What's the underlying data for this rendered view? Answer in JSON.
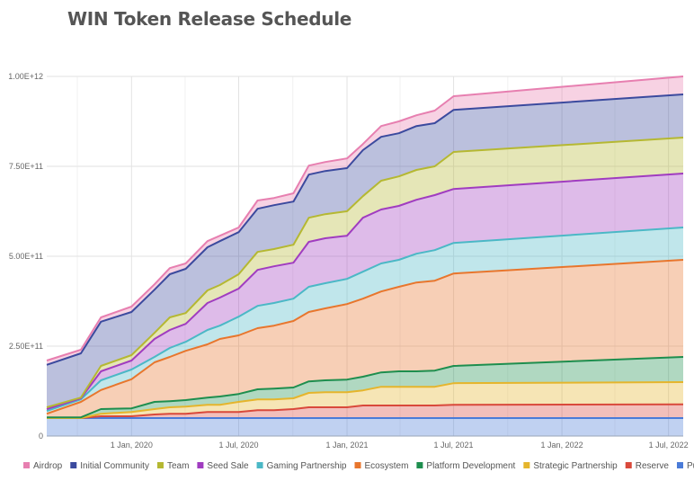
{
  "chart_data": {
    "type": "area",
    "stacked": true,
    "title": "WIN Token Release Schedule",
    "xlabel": "",
    "ylabel": "",
    "ylim": [
      0,
      1000000000000.0
    ],
    "y_ticks": [
      {
        "value": 0,
        "label": "0"
      },
      {
        "value": 250000000000.0,
        "label": "2.50E+11"
      },
      {
        "value": 500000000000.0,
        "label": "5.00E+11"
      },
      {
        "value": 750000000000.0,
        "label": "7.50E+11"
      },
      {
        "value": 1000000000000.0,
        "label": "1.00E+12"
      }
    ],
    "x_ticks": [
      {
        "date": "2020-01-01",
        "label": "1 Jan, 2020"
      },
      {
        "date": "2020-07-01",
        "label": "1 Jul, 2020"
      },
      {
        "date": "2021-01-01",
        "label": "1 Jan, 2021"
      },
      {
        "date": "2021-07-01",
        "label": "1 Jul, 2021"
      },
      {
        "date": "2022-01-01",
        "label": "1 Jan, 2022"
      },
      {
        "date": "2022-07-01",
        "label": "1 Jul, 2022"
      }
    ],
    "xlim": [
      "2019-08-10",
      "2022-07-26"
    ],
    "grid": true,
    "legend_position": "bottom",
    "x": [
      "2019-08-10",
      "2019-10-07",
      "2019-11-10",
      "2020-01-01",
      "2020-02-09",
      "2020-03-06",
      "2020-04-02",
      "2020-05-09",
      "2020-05-30",
      "2020-07-01",
      "2020-08-02",
      "2020-08-30",
      "2020-10-02",
      "2020-10-28",
      "2020-11-25",
      "2021-01-01",
      "2021-01-28",
      "2021-02-28",
      "2021-03-30",
      "2021-04-29",
      "2021-05-30",
      "2021-07-01",
      "2022-07-26"
    ],
    "series": [
      {
        "name": "Public Sale",
        "color": "#4a7bd8",
        "values": [
          50000000000.0,
          50000000000.0,
          50000000000.0,
          50000000000.0,
          50000000000.0,
          50000000000.0,
          50000000000.0,
          50000000000.0,
          50000000000.0,
          50000000000.0,
          50000000000.0,
          50000000000.0,
          50000000000.0,
          50000000000.0,
          50000000000.0,
          50000000000.0,
          50000000000.0,
          50000000000.0,
          50000000000.0,
          50000000000.0,
          50000000000.0,
          50000000000.0,
          50000000000.0
        ]
      },
      {
        "name": "Reserve",
        "color": "#d9493b",
        "values": [
          0,
          0,
          5000000000.0,
          5000000000.0,
          10000000000.0,
          12000000000.0,
          12000000000.0,
          17000000000.0,
          17000000000.0,
          17000000000.0,
          22000000000.0,
          22000000000.0,
          25000000000.0,
          30000000000.0,
          30000000000.0,
          30000000000.0,
          35000000000.0,
          35000000000.0,
          35000000000.0,
          35000000000.0,
          35000000000.0,
          37000000000.0,
          38000000000.0
        ]
      },
      {
        "name": "Strategic Partnership",
        "color": "#e5b52c",
        "values": [
          0,
          0,
          7000000000.0,
          12000000000.0,
          15000000000.0,
          18000000000.0,
          20000000000.0,
          20000000000.0,
          20000000000.0,
          28000000000.0,
          30000000000.0,
          30000000000.0,
          30000000000.0,
          40000000000.0,
          42000000000.0,
          42000000000.0,
          42000000000.0,
          52000000000.0,
          52000000000.0,
          52000000000.0,
          52000000000.0,
          60000000000.0,
          62000000000.0
        ]
      },
      {
        "name": "Platform Development",
        "color": "#1e8e4e",
        "values": [
          2000000000.0,
          2000000000.0,
          13000000000.0,
          10000000000.0,
          20000000000.0,
          17000000000.0,
          18000000000.0,
          20000000000.0,
          23000000000.0,
          22000000000.0,
          28000000000.0,
          30000000000.0,
          30000000000.0,
          32000000000.0,
          33000000000.0,
          35000000000.0,
          38000000000.0,
          40000000000.0,
          43000000000.0,
          43000000000.0,
          45000000000.0,
          48000000000.0,
          70000000000.0
        ]
      },
      {
        "name": "Ecosystem",
        "color": "#e8762d",
        "values": [
          10000000000.0,
          43000000000.0,
          53000000000.0,
          81000000000.0,
          110000000000.0,
          123000000000.0,
          137000000000.0,
          148000000000.0,
          160000000000.0,
          163000000000.0,
          170000000000.0,
          175000000000.0,
          185000000000.0,
          193000000000.0,
          200000000000.0,
          210000000000.0,
          217000000000.0,
          225000000000.0,
          235000000000.0,
          247000000000.0,
          250000000000.0,
          257000000000.0,
          270000000000.0
        ]
      },
      {
        "name": "Gaming Partnership",
        "color": "#4bb8c6",
        "values": [
          8000000000.0,
          7000000000.0,
          27000000000.0,
          27000000000.0,
          15000000000.0,
          25000000000.0,
          25000000000.0,
          40000000000.0,
          37000000000.0,
          52000000000.0,
          62000000000.0,
          63000000000.0,
          62000000000.0,
          70000000000.0,
          70000000000.0,
          70000000000.0,
          75000000000.0,
          78000000000.0,
          75000000000.0,
          80000000000.0,
          85000000000.0,
          85000000000.0,
          90000000000.0
        ]
      },
      {
        "name": "Seed Sale",
        "color": "#a03cc0",
        "values": [
          5000000000.0,
          3000000000.0,
          25000000000.0,
          25000000000.0,
          50000000000.0,
          50000000000.0,
          50000000000.0,
          75000000000.0,
          78000000000.0,
          78000000000.0,
          100000000000.0,
          102000000000.0,
          100000000000.0,
          125000000000.0,
          125000000000.0,
          120000000000.0,
          150000000000.0,
          150000000000.0,
          150000000000.0,
          150000000000.0,
          153000000000.0,
          150000000000.0,
          150000000000.0
        ]
      },
      {
        "name": "Team",
        "color": "#b5b832",
        "values": [
          5000000000.0,
          2000000000.0,
          15000000000.0,
          15000000000.0,
          17000000000.0,
          35000000000.0,
          30000000000.0,
          35000000000.0,
          35000000000.0,
          40000000000.0,
          50000000000.0,
          48000000000.0,
          50000000000.0,
          67000000000.0,
          67000000000.0,
          68000000000.0,
          60000000000.0,
          80000000000.0,
          82000000000.0,
          83000000000.0,
          80000000000.0,
          103000000000.0,
          100000000000.0
        ]
      },
      {
        "name": "Initial Community",
        "color": "#3b4a9e",
        "values": [
          118000000000.0,
          123000000000.0,
          123000000000.0,
          120000000000.0,
          120000000000.0,
          120000000000.0,
          123000000000.0,
          120000000000.0,
          122000000000.0,
          117000000000.0,
          120000000000.0,
          122000000000.0,
          120000000000.0,
          120000000000.0,
          120000000000.0,
          120000000000.0,
          128000000000.0,
          122000000000.0,
          120000000000.0,
          122000000000.0,
          120000000000.0,
          117000000000.0,
          120000000000.0
        ]
      },
      {
        "name": "Airdrop",
        "color": "#e77fb0",
        "values": [
          12000000000.0,
          10000000000.0,
          12000000000.0,
          15000000000.0,
          15000000000.0,
          17000000000.0,
          15000000000.0,
          17000000000.0,
          15000000000.0,
          13000000000.0,
          23000000000.0,
          20000000000.0,
          23000000000.0,
          25000000000.0,
          25000000000.0,
          27000000000.0,
          17000000000.0,
          30000000000.0,
          33000000000.0,
          30000000000.0,
          35000000000.0,
          38000000000.0,
          50000000000.0
        ]
      }
    ],
    "legend_order": [
      "Airdrop",
      "Initial Community",
      "Team",
      "Seed Sale",
      "Gaming Partnership",
      "Ecosystem",
      "Platform Development",
      "Strategic Partnership",
      "Reserve",
      "Public Sale"
    ]
  }
}
